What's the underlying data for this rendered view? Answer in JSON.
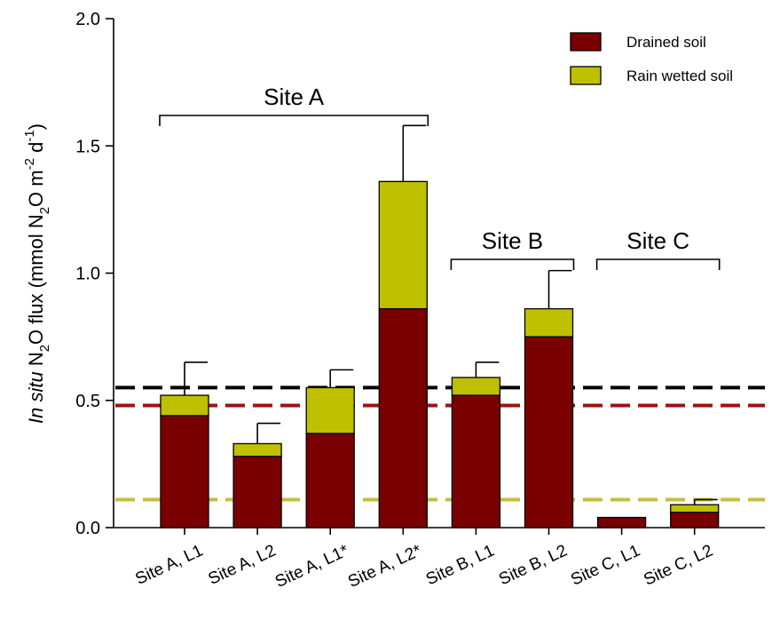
{
  "chart_data": {
    "type": "bar",
    "stacked": true,
    "ylabel_parts": {
      "italic": "In situ",
      "t1": " N",
      "sub1": "2",
      "t2": "O flux (mmol N",
      "sub2": "2",
      "t3": "O m",
      "sup1": "-2",
      "t4": " d",
      "sup2": "-1",
      "t5": ")"
    },
    "ylim": [
      0,
      2.0
    ],
    "yticks": [
      0.0,
      0.5,
      1.0,
      1.5,
      2.0
    ],
    "ytick_labels": [
      "0.0",
      "0.5",
      "1.0",
      "1.5",
      "2.0"
    ],
    "categories": [
      "Site A, L1",
      "Site A, L2",
      "Site A, L1*",
      "Site A, L2*",
      "Site B, L1",
      "Site B, L2",
      "Site C, L1",
      "Site C, L2"
    ],
    "series": [
      {
        "name": "Drained soil",
        "color": "#7a0000",
        "values": [
          0.44,
          0.28,
          0.37,
          0.86,
          0.52,
          0.75,
          0.04,
          0.06
        ]
      },
      {
        "name": "Rain wetted soil",
        "color": "#bfc000",
        "values": [
          0.08,
          0.05,
          0.18,
          0.5,
          0.07,
          0.11,
          0.0,
          0.03
        ]
      }
    ],
    "error_bar_tops": [
      0.65,
      0.41,
      0.62,
      1.58,
      0.65,
      1.01,
      null,
      0.11
    ],
    "reference_lines": [
      {
        "value": 0.55,
        "color": "#000000"
      },
      {
        "value": 0.48,
        "color": "#a01010"
      },
      {
        "value": 0.11,
        "color": "#c8bd3a"
      }
    ],
    "groups": [
      {
        "label": "Site A",
        "from": 0,
        "to": 3
      },
      {
        "label": "Site B",
        "from": 4,
        "to": 5
      },
      {
        "label": "Site C",
        "from": 6,
        "to": 7
      }
    ],
    "legend_position": "top-right",
    "grid": false
  }
}
